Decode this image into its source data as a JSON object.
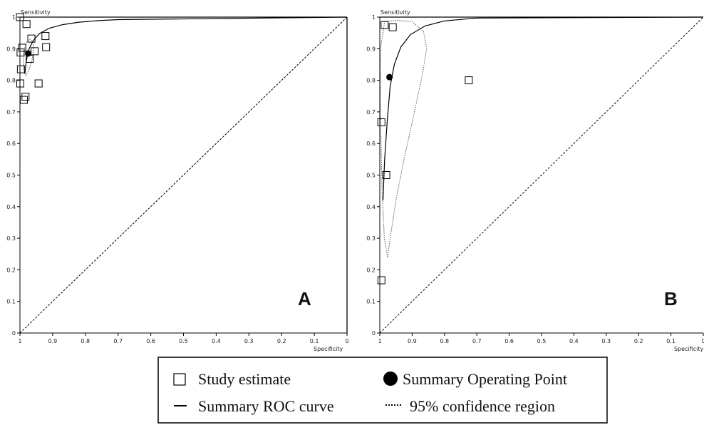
{
  "chart_data": [
    {
      "type": "scatter",
      "panel_label": "A",
      "xlabel": "Specificity",
      "ylabel": "Sensitivity",
      "xlim": [
        1,
        0
      ],
      "ylim": [
        0,
        1
      ],
      "x_ticks": [
        "1",
        "0.9",
        "0.8",
        "0.7",
        "0.6",
        "0.5",
        "0.4",
        "0.3",
        "0.2",
        "0.1",
        "0"
      ],
      "y_ticks": [
        "0",
        "0.1",
        "0.2",
        "0.3",
        "0.4",
        "0.5",
        "0.6",
        "0.7",
        "0.8",
        "0.9",
        "1"
      ],
      "study_estimates": [
        {
          "x": 1.0,
          "y": 1.0
        },
        {
          "x": 0.98,
          "y": 0.978
        },
        {
          "x": 0.965,
          "y": 0.932
        },
        {
          "x": 0.922,
          "y": 0.94
        },
        {
          "x": 0.92,
          "y": 0.905
        },
        {
          "x": 0.993,
          "y": 0.903
        },
        {
          "x": 0.998,
          "y": 0.888
        },
        {
          "x": 0.955,
          "y": 0.892
        },
        {
          "x": 0.97,
          "y": 0.868
        },
        {
          "x": 0.997,
          "y": 0.835
        },
        {
          "x": 0.999,
          "y": 0.79
        },
        {
          "x": 0.943,
          "y": 0.79
        },
        {
          "x": 0.983,
          "y": 0.748
        },
        {
          "x": 0.988,
          "y": 0.738
        }
      ],
      "summary_point": {
        "x": 0.975,
        "y": 0.885
      },
      "sroc_curve": [
        {
          "x": 0.985,
          "y": 0.82
        },
        {
          "x": 0.982,
          "y": 0.85
        },
        {
          "x": 0.978,
          "y": 0.875
        },
        {
          "x": 0.972,
          "y": 0.9
        },
        {
          "x": 0.96,
          "y": 0.925
        },
        {
          "x": 0.94,
          "y": 0.948
        },
        {
          "x": 0.91,
          "y": 0.965
        },
        {
          "x": 0.87,
          "y": 0.976
        },
        {
          "x": 0.82,
          "y": 0.984
        },
        {
          "x": 0.76,
          "y": 0.989
        },
        {
          "x": 0.7,
          "y": 0.992
        }
      ],
      "confidence_region": [
        {
          "x": 0.982,
          "y": 0.815
        },
        {
          "x": 0.972,
          "y": 0.835
        },
        {
          "x": 0.963,
          "y": 0.865
        },
        {
          "x": 0.958,
          "y": 0.895
        },
        {
          "x": 0.96,
          "y": 0.918
        },
        {
          "x": 0.968,
          "y": 0.93
        },
        {
          "x": 0.978,
          "y": 0.925
        },
        {
          "x": 0.986,
          "y": 0.9
        },
        {
          "x": 0.99,
          "y": 0.865
        },
        {
          "x": 0.989,
          "y": 0.835
        },
        {
          "x": 0.982,
          "y": 0.815
        }
      ]
    },
    {
      "type": "scatter",
      "panel_label": "B",
      "xlabel": "Specificity",
      "ylabel": "Sensitivity",
      "xlim": [
        1,
        0
      ],
      "ylim": [
        0,
        1
      ],
      "x_ticks": [
        "1",
        "0.9",
        "0.8",
        "0.7",
        "0.6",
        "0.5",
        "0.4",
        "0.3",
        "0.2",
        "0.1",
        "0"
      ],
      "y_ticks": [
        "0",
        "0.1",
        "0.2",
        "0.3",
        "0.4",
        "0.5",
        "0.6",
        "0.7",
        "0.8",
        "0.9",
        "1"
      ],
      "study_estimates": [
        {
          "x": 0.985,
          "y": 0.975
        },
        {
          "x": 0.96,
          "y": 0.968
        },
        {
          "x": 0.725,
          "y": 0.8
        },
        {
          "x": 0.995,
          "y": 0.667
        },
        {
          "x": 0.98,
          "y": 0.5
        },
        {
          "x": 0.995,
          "y": 0.167
        }
      ],
      "summary_point": {
        "x": 0.97,
        "y": 0.81
      },
      "sroc_curve": [
        {
          "x": 0.99,
          "y": 0.42
        },
        {
          "x": 0.985,
          "y": 0.55
        },
        {
          "x": 0.977,
          "y": 0.67
        },
        {
          "x": 0.968,
          "y": 0.78
        },
        {
          "x": 0.955,
          "y": 0.85
        },
        {
          "x": 0.935,
          "y": 0.905
        },
        {
          "x": 0.905,
          "y": 0.945
        },
        {
          "x": 0.86,
          "y": 0.972
        },
        {
          "x": 0.8,
          "y": 0.988
        },
        {
          "x": 0.7,
          "y": 0.997
        }
      ],
      "confidence_region": [
        {
          "x": 0.976,
          "y": 0.24
        },
        {
          "x": 0.968,
          "y": 0.3
        },
        {
          "x": 0.95,
          "y": 0.42
        },
        {
          "x": 0.925,
          "y": 0.55
        },
        {
          "x": 0.895,
          "y": 0.69
        },
        {
          "x": 0.868,
          "y": 0.82
        },
        {
          "x": 0.855,
          "y": 0.9
        },
        {
          "x": 0.865,
          "y": 0.955
        },
        {
          "x": 0.9,
          "y": 0.985
        },
        {
          "x": 0.945,
          "y": 0.99
        },
        {
          "x": 0.985,
          "y": 0.985
        },
        {
          "x": 0.998,
          "y": 0.9
        },
        {
          "x": 0.998,
          "y": 0.7
        },
        {
          "x": 0.993,
          "y": 0.45
        },
        {
          "x": 0.986,
          "y": 0.3
        },
        {
          "x": 0.976,
          "y": 0.24
        }
      ]
    }
  ],
  "legend": {
    "study_estimate": "Study estimate",
    "summary_operating_point": "Summary Operating Point",
    "summary_roc_curve": "Summary ROC curve",
    "confidence_region": "95% confidence region"
  }
}
